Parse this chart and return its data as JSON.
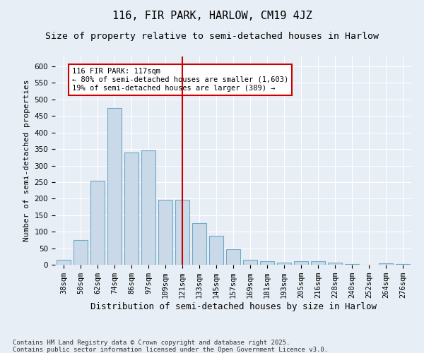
{
  "title1": "116, FIR PARK, HARLOW, CM19 4JZ",
  "title2": "Size of property relative to semi-detached houses in Harlow",
  "xlabel": "Distribution of semi-detached houses by size in Harlow",
  "ylabel": "Number of semi-detached properties",
  "categories": [
    "38sqm",
    "50sqm",
    "62sqm",
    "74sqm",
    "86sqm",
    "97sqm",
    "109sqm",
    "121sqm",
    "133sqm",
    "145sqm",
    "157sqm",
    "169sqm",
    "181sqm",
    "193sqm",
    "205sqm",
    "216sqm",
    "228sqm",
    "240sqm",
    "252sqm",
    "264sqm",
    "276sqm"
  ],
  "values": [
    15,
    75,
    255,
    475,
    340,
    347,
    197,
    196,
    127,
    87,
    47,
    15,
    10,
    7,
    10,
    10,
    6,
    2,
    1,
    4,
    2
  ],
  "bar_color_fill": "#c9d9e8",
  "bar_color_edge": "#6fa8c8",
  "vline_x_index": 7,
  "vline_color": "#cc0000",
  "annotation_text": "116 FIR PARK: 117sqm\n← 80% of semi-detached houses are smaller (1,603)\n19% of semi-detached houses are larger (389) →",
  "annotation_box_color": "#cc0000",
  "annotation_text_color": "#000000",
  "ylim": [
    0,
    630
  ],
  "yticks": [
    0,
    50,
    100,
    150,
    200,
    250,
    300,
    350,
    400,
    450,
    500,
    550,
    600
  ],
  "bg_color": "#e8eef5",
  "plot_bg_color": "#e8eef5",
  "footer_text": "Contains HM Land Registry data © Crown copyright and database right 2025.\nContains public sector information licensed under the Open Government Licence v3.0.",
  "title1_fontsize": 11,
  "title2_fontsize": 9.5,
  "xlabel_fontsize": 9,
  "ylabel_fontsize": 8,
  "tick_fontsize": 7.5,
  "footer_fontsize": 6.5
}
